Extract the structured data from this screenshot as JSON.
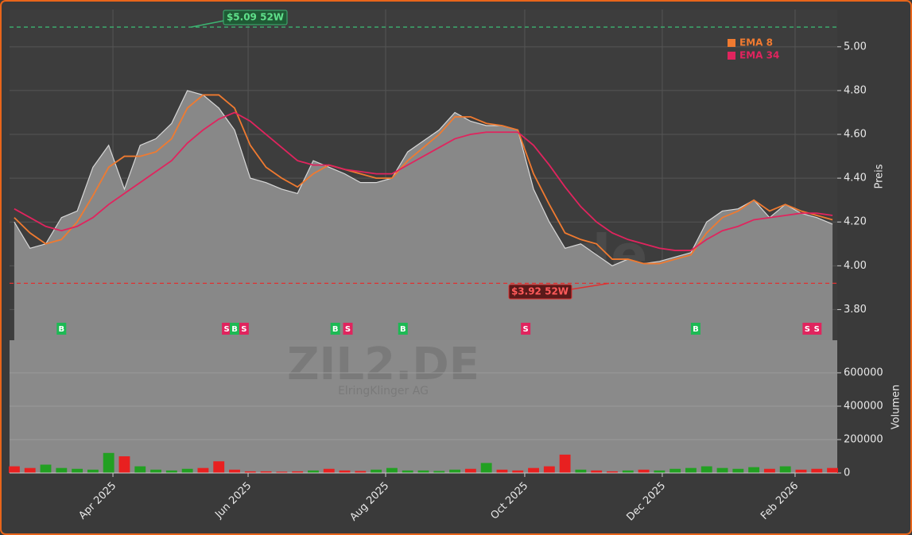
{
  "chart_data": [
    {
      "type": "line",
      "categories": [
        null,
        null,
        null,
        null,
        null,
        null,
        null,
        null,
        null,
        null,
        null,
        null,
        null,
        null,
        null,
        null,
        null,
        null,
        null,
        null,
        null,
        null,
        null,
        null,
        null,
        null,
        null,
        null,
        null,
        null,
        null,
        null,
        null,
        null,
        null,
        null,
        null,
        null,
        null,
        null,
        null,
        null,
        null,
        null,
        null,
        null,
        null,
        null,
        null,
        null,
        null,
        null,
        null
      ],
      "values": [
        4.2,
        4.08,
        4.1,
        4.22,
        4.25,
        4.45,
        4.55,
        4.35,
        4.55,
        4.58,
        4.65,
        4.8,
        4.78,
        4.72,
        4.62,
        4.4,
        4.38,
        4.35,
        4.33,
        4.48,
        4.45,
        4.42,
        4.38,
        4.38,
        4.4,
        4.52,
        4.57,
        4.62,
        4.7,
        4.66,
        4.64,
        4.64,
        4.62,
        4.35,
        4.2,
        4.08,
        4.1,
        4.05,
        4.0,
        4.03,
        4.01,
        4.02,
        4.04,
        4.06,
        4.2,
        4.25,
        4.26,
        4.3,
        4.22,
        4.28,
        4.24,
        4.22,
        4.19
      ],
      "color": "#8a8a8a",
      "series": [
        {
          "name": "EMA 8",
          "color": "#f07a30",
          "values": [
            4.22,
            4.15,
            4.1,
            4.12,
            4.2,
            4.32,
            4.45,
            4.5,
            4.5,
            4.52,
            4.58,
            4.72,
            4.78,
            4.78,
            4.72,
            4.55,
            4.45,
            4.4,
            4.36,
            4.42,
            4.46,
            4.44,
            4.42,
            4.4,
            4.4,
            4.48,
            4.54,
            4.6,
            4.68,
            4.68,
            4.65,
            4.64,
            4.62,
            4.42,
            4.28,
            4.15,
            4.12,
            4.1,
            4.03,
            4.03,
            4.01,
            4.01,
            4.03,
            4.05,
            4.15,
            4.22,
            4.25,
            4.3,
            4.25,
            4.28,
            4.25,
            4.23,
            4.21
          ]
        },
        {
          "name": "EMA 34",
          "color": "#e0245e",
          "values": [
            4.26,
            4.22,
            4.18,
            4.16,
            4.18,
            4.22,
            4.28,
            4.33,
            4.38,
            4.43,
            4.48,
            4.56,
            4.62,
            4.67,
            4.7,
            4.66,
            4.6,
            4.54,
            4.48,
            4.46,
            4.46,
            4.44,
            4.43,
            4.42,
            4.42,
            4.46,
            4.5,
            4.54,
            4.58,
            4.6,
            4.61,
            4.61,
            4.61,
            4.55,
            4.46,
            4.36,
            4.27,
            4.2,
            4.15,
            4.12,
            4.1,
            4.08,
            4.07,
            4.07,
            4.12,
            4.16,
            4.18,
            4.21,
            4.22,
            4.23,
            4.24,
            4.24,
            4.23
          ]
        }
      ],
      "xlim": [
        -0.3,
        52.3
      ],
      "xticks": [
        6.27,
        14.86,
        23.6,
        32.44,
        41.18,
        49.62
      ],
      "ylim": [
        3.66,
        5.17
      ],
      "yticks": [
        {
          "value": 3.8,
          "label": "3.80"
        },
        {
          "value": 4.0,
          "label": "4.00"
        },
        {
          "value": 4.2,
          "label": "4.20"
        },
        {
          "value": 4.4,
          "label": "4.40"
        },
        {
          "value": 4.6,
          "label": "4.60"
        },
        {
          "value": 4.8,
          "label": "4.80"
        },
        {
          "value": 5.0,
          "label": "5.00"
        }
      ],
      "y_label": "Preis",
      "grid": true,
      "legend": "upper right",
      "high_52w": {
        "value": 5.09,
        "label": "$5.09 52W",
        "color": "#3cb371"
      },
      "low_52w": {
        "value": 3.92,
        "label": "$3.92 52W",
        "color": "#e03030"
      },
      "signals": [
        {
          "label": "B",
          "index": 3,
          "color": "#1db954"
        },
        {
          "label": "S",
          "index": 13.5,
          "color": "#e0245e"
        },
        {
          "label": "B",
          "index": 14,
          "color": "#1db954"
        },
        {
          "label": "S",
          "index": 14.6,
          "color": "#e0245e"
        },
        {
          "label": "B",
          "index": 20.4,
          "color": "#1db954"
        },
        {
          "label": "S",
          "index": 21.2,
          "color": "#e0245e"
        },
        {
          "label": "B",
          "index": 24.7,
          "color": "#1db954"
        },
        {
          "label": "S",
          "index": 32.5,
          "color": "#e0245e"
        },
        {
          "label": "B",
          "index": 43.3,
          "color": "#1db954"
        },
        {
          "label": "S",
          "index": 50.4,
          "color": "#e0245e"
        },
        {
          "label": "S",
          "index": 51.0,
          "color": "#e0245e"
        }
      ],
      "watermark": "forexsignale.trade"
    },
    {
      "type": "bar",
      "categories": [
        null,
        null,
        null,
        null,
        null,
        null,
        null,
        null,
        null,
        null,
        null,
        null,
        null,
        null,
        null,
        null,
        null,
        null,
        null,
        null,
        null,
        null,
        null,
        null,
        null,
        null,
        null,
        null,
        null,
        null,
        null,
        null,
        null,
        null,
        null,
        null,
        null,
        null,
        null,
        null,
        null,
        null,
        null,
        null,
        null,
        null,
        null,
        null,
        null,
        null,
        null,
        null,
        null
      ],
      "values": [
        40000,
        30000,
        50000,
        30000,
        25000,
        20000,
        120000,
        100000,
        40000,
        20000,
        15000,
        25000,
        30000,
        70000,
        20000,
        10000,
        10000,
        8000,
        10000,
        15000,
        25000,
        15000,
        12000,
        20000,
        30000,
        15000,
        15000,
        12000,
        20000,
        25000,
        60000,
        20000,
        15000,
        30000,
        40000,
        110000,
        20000,
        15000,
        10000,
        15000,
        20000,
        15000,
        25000,
        30000,
        40000,
        30000,
        25000,
        35000,
        25000,
        40000,
        20000,
        25000,
        30000
      ],
      "colors": [
        "#e82020",
        "#e82020",
        "#22a022",
        "#22a022",
        "#22a022",
        "#22a022",
        "#22a022",
        "#e82020",
        "#22a022",
        "#22a022",
        "#22a022",
        "#22a022",
        "#e82020",
        "#e82020",
        "#e82020",
        "#e82020",
        "#e82020",
        "#e82020",
        "#e82020",
        "#22a022",
        "#e82020",
        "#e82020",
        "#e82020",
        "#22a022",
        "#22a022",
        "#22a022",
        "#22a022",
        "#22a022",
        "#22a022",
        "#e82020",
        "#22a022",
        "#e82020",
        "#e82020",
        "#e82020",
        "#e82020",
        "#e82020",
        "#22a022",
        "#e82020",
        "#e82020",
        "#22a022",
        "#e82020",
        "#22a022",
        "#22a022",
        "#22a022",
        "#22a022",
        "#22a022",
        "#22a022",
        "#22a022",
        "#e82020",
        "#22a022",
        "#e82020",
        "#e82020",
        "#e82020"
      ],
      "xlim": [
        -0.3,
        52.3
      ],
      "xticks": [
        {
          "value": 6.27,
          "label": "Apr 2025"
        },
        {
          "value": 14.86,
          "label": "Jun 2025"
        },
        {
          "value": 23.6,
          "label": "Aug 2025"
        },
        {
          "value": 32.44,
          "label": "Oct 2025"
        },
        {
          "value": 41.18,
          "label": "Dec 2025"
        },
        {
          "value": 49.62,
          "label": "Feb 2026"
        }
      ],
      "ylim": [
        0,
        795000
      ],
      "yticks": [
        0,
        200000,
        400000,
        600000
      ],
      "y_label": "Volumen",
      "grid": true,
      "symbol": "ZIL2.DE",
      "company": "ElringKlinger AG"
    }
  ]
}
